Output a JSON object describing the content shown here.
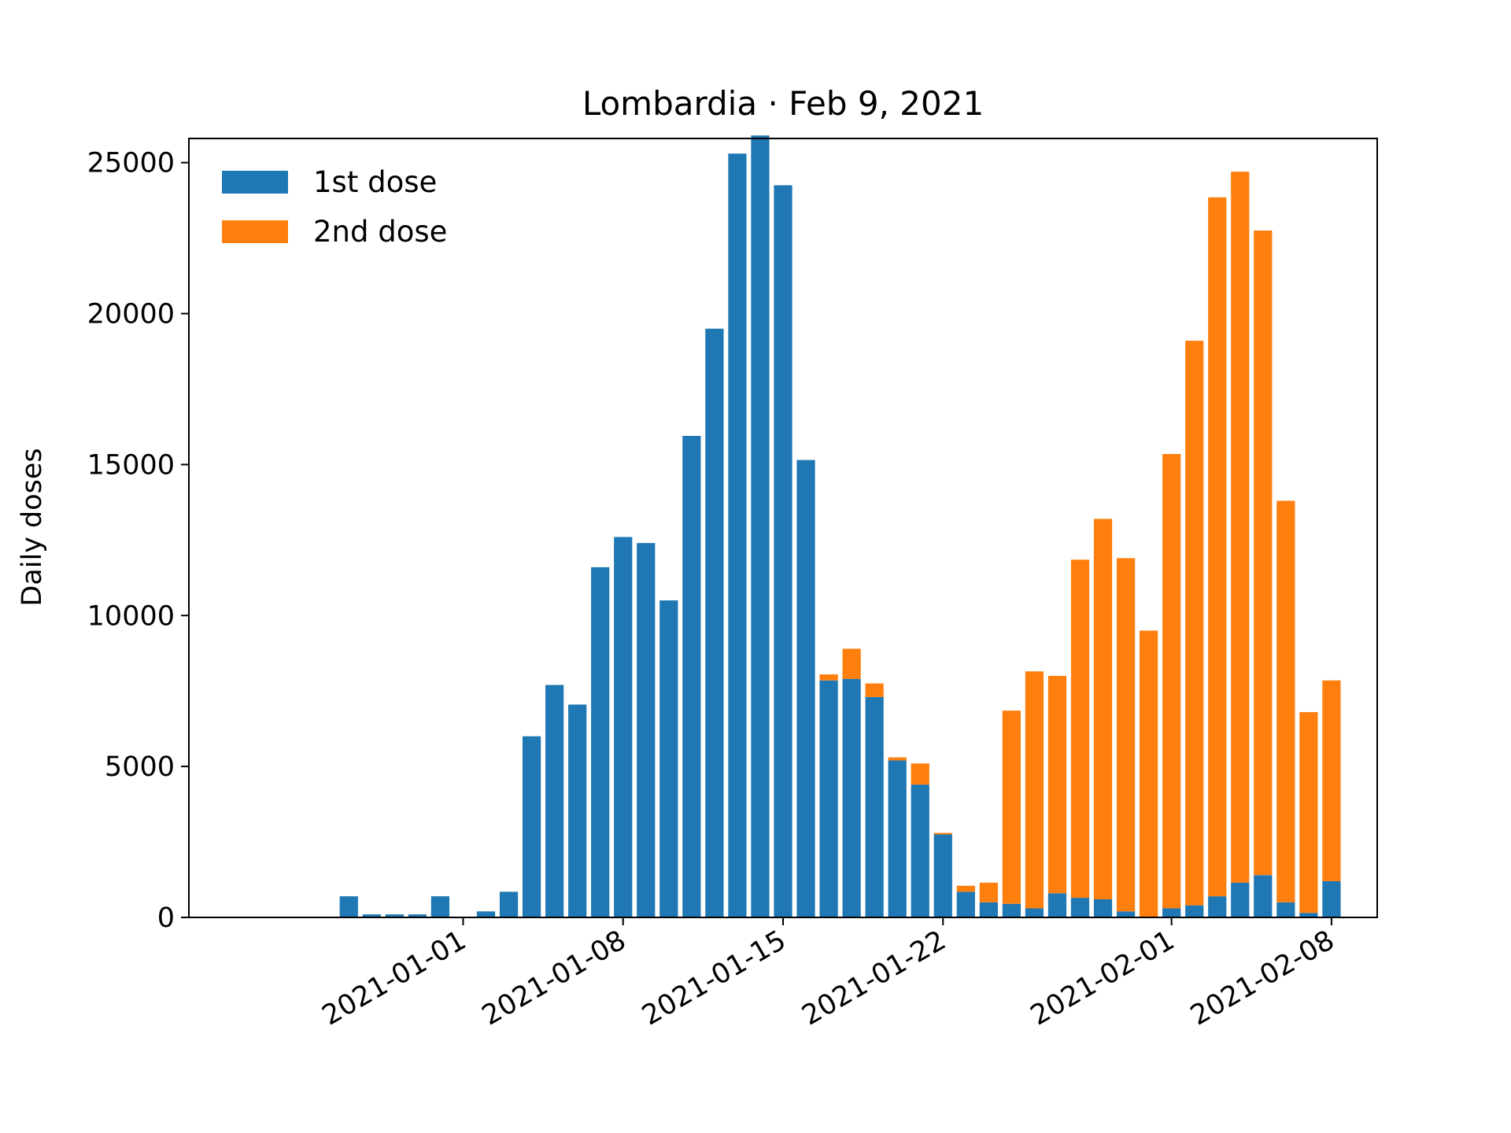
{
  "chart_data": {
    "type": "bar",
    "stacked": true,
    "title": "Lombardia · Feb 9, 2021",
    "xlabel": "",
    "ylabel": "Daily doses",
    "ylim": [
      0,
      25800
    ],
    "xlim": [
      "2020-12-20",
      "2021-02-10"
    ],
    "yticks": [
      0,
      5000,
      10000,
      15000,
      20000,
      25000
    ],
    "xticks": [
      "2021-01-01",
      "2021-01-08",
      "2021-01-15",
      "2021-01-22",
      "2021-02-01",
      "2021-02-08"
    ],
    "legend_position": "upper-left",
    "grid": false,
    "x": [
      "2020-12-27",
      "2020-12-28",
      "2020-12-29",
      "2020-12-30",
      "2020-12-31",
      "2021-01-01",
      "2021-01-02",
      "2021-01-03",
      "2021-01-04",
      "2021-01-05",
      "2021-01-06",
      "2021-01-07",
      "2021-01-08",
      "2021-01-09",
      "2021-01-10",
      "2021-01-11",
      "2021-01-12",
      "2021-01-13",
      "2021-01-14",
      "2021-01-15",
      "2021-01-16",
      "2021-01-17",
      "2021-01-18",
      "2021-01-19",
      "2021-01-20",
      "2021-01-21",
      "2021-01-22",
      "2021-01-23",
      "2021-01-24",
      "2021-01-25",
      "2021-01-26",
      "2021-01-27",
      "2021-01-28",
      "2021-01-29",
      "2021-01-30",
      "2021-01-31",
      "2021-02-01",
      "2021-02-02",
      "2021-02-03",
      "2021-02-04",
      "2021-02-05",
      "2021-02-06",
      "2021-02-07",
      "2021-02-08"
    ],
    "series": [
      {
        "name": "1st dose",
        "color": "#1f77b4",
        "values": [
          700,
          100,
          100,
          100,
          700,
          0,
          200,
          850,
          6000,
          7700,
          7050,
          11600,
          12600,
          12400,
          10500,
          15950,
          19500,
          25300,
          25900,
          24250,
          15150,
          7850,
          7900,
          7300,
          5200,
          4400,
          2750,
          850,
          500,
          450,
          300,
          800,
          650,
          600,
          200,
          0,
          300,
          400,
          700,
          1150,
          1400,
          500,
          150,
          1200
        ]
      },
      {
        "name": "2nd dose",
        "color": "#ff7f0e",
        "values": [
          0,
          0,
          0,
          0,
          0,
          0,
          0,
          0,
          0,
          0,
          0,
          0,
          0,
          0,
          0,
          0,
          0,
          0,
          0,
          0,
          0,
          200,
          1000,
          450,
          100,
          700,
          50,
          200,
          650,
          6400,
          7850,
          7200,
          11200,
          12600,
          11700,
          9500,
          15050,
          18700,
          23150,
          23550,
          21350,
          13300,
          6650,
          6650
        ]
      }
    ]
  }
}
